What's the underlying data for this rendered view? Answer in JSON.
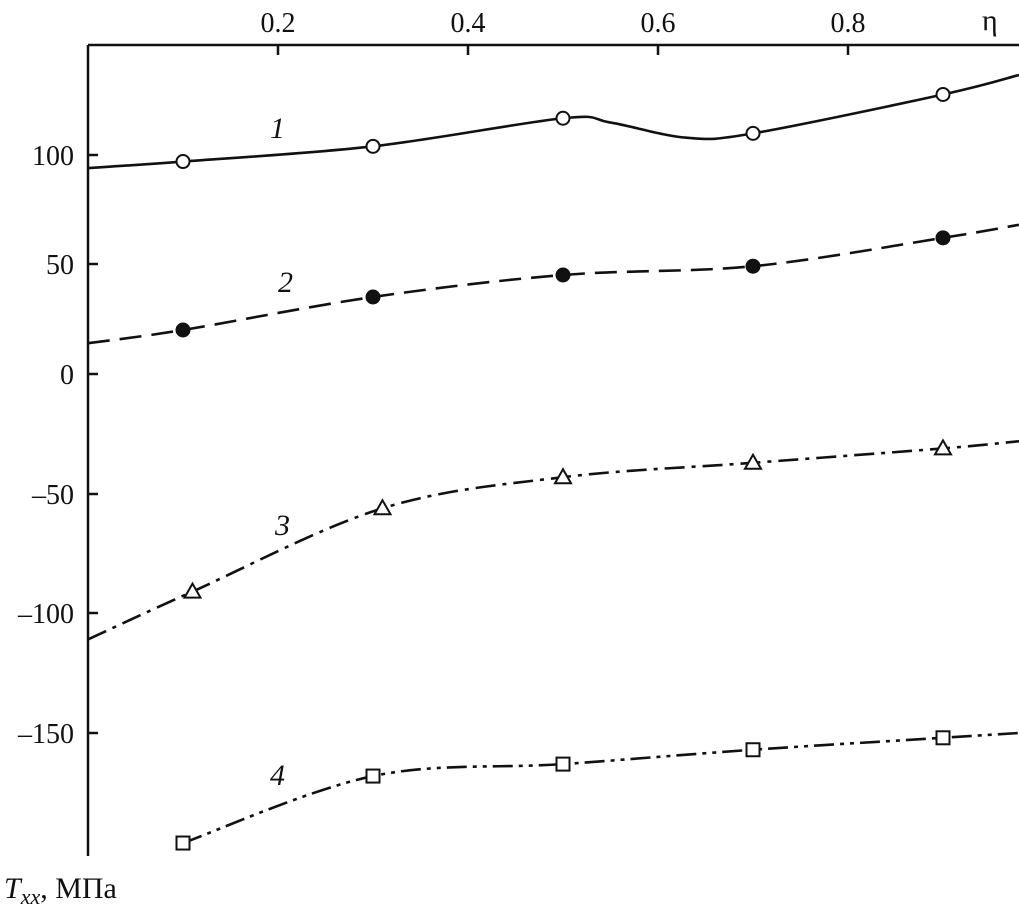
{
  "chart_data": {
    "type": "line",
    "title": "",
    "xlabel": "η",
    "ylabel_main": "T",
    "ylabel_sub": "xx",
    "ylabel_unit": ", МПа",
    "xlim": [
      0,
      0.98
    ],
    "ylim": [
      -201,
      137
    ],
    "grid": false,
    "x_ticks": [
      0.2,
      0.4,
      0.6,
      0.8
    ],
    "x_tick_labels": [
      "0.2",
      "0.4",
      "0.6",
      "0.8"
    ],
    "y_ticks": [
      100,
      50,
      0,
      -50,
      -100,
      -150
    ],
    "y_tick_labels": [
      "100",
      "50",
      "0",
      "–50",
      "–100",
      "–150"
    ],
    "series": [
      {
        "name": "1",
        "marker": "open-circle",
        "style": "solid",
        "line_x": [
          0,
          0.1,
          0.3,
          0.5,
          0.55,
          0.63,
          0.7,
          0.9,
          0.98
        ],
        "line_y": [
          94,
          97,
          104,
          117,
          115,
          108,
          110,
          128,
          137
        ],
        "x": [
          0.1,
          0.3,
          0.5,
          0.7,
          0.9
        ],
        "y": [
          97,
          104,
          117,
          110,
          128
        ]
      },
      {
        "name": "2",
        "marker": "filled-circle",
        "style": "dashed",
        "line_x": [
          0,
          0.1,
          0.3,
          0.5,
          0.7,
          0.9,
          0.98
        ],
        "line_y": [
          14,
          20,
          35,
          45,
          49,
          62,
          68
        ],
        "x": [
          0.1,
          0.3,
          0.5,
          0.7,
          0.9
        ],
        "y": [
          20,
          35,
          45,
          49,
          62
        ]
      },
      {
        "name": "3",
        "marker": "open-triangle",
        "style": "dash-dot",
        "line_x": [
          0,
          0.11,
          0.31,
          0.5,
          0.7,
          0.9,
          0.98
        ],
        "line_y": [
          -111,
          -91,
          -56,
          -43,
          -37,
          -31,
          -28
        ],
        "x": [
          0.11,
          0.31,
          0.5,
          0.7,
          0.9
        ],
        "y": [
          -91,
          -56,
          -43,
          -37,
          -31
        ]
      },
      {
        "name": "4",
        "marker": "open-square",
        "style": "dash-dot-dot",
        "line_x": [
          0.1,
          0.3,
          0.5,
          0.7,
          0.9,
          0.98
        ],
        "line_y": [
          -196,
          -168,
          -163,
          -157,
          -152,
          -150
        ],
        "x": [
          0.1,
          0.3,
          0.5,
          0.7,
          0.9
        ],
        "y": [
          -196,
          -168,
          -163,
          -157,
          -152
        ]
      }
    ]
  }
}
